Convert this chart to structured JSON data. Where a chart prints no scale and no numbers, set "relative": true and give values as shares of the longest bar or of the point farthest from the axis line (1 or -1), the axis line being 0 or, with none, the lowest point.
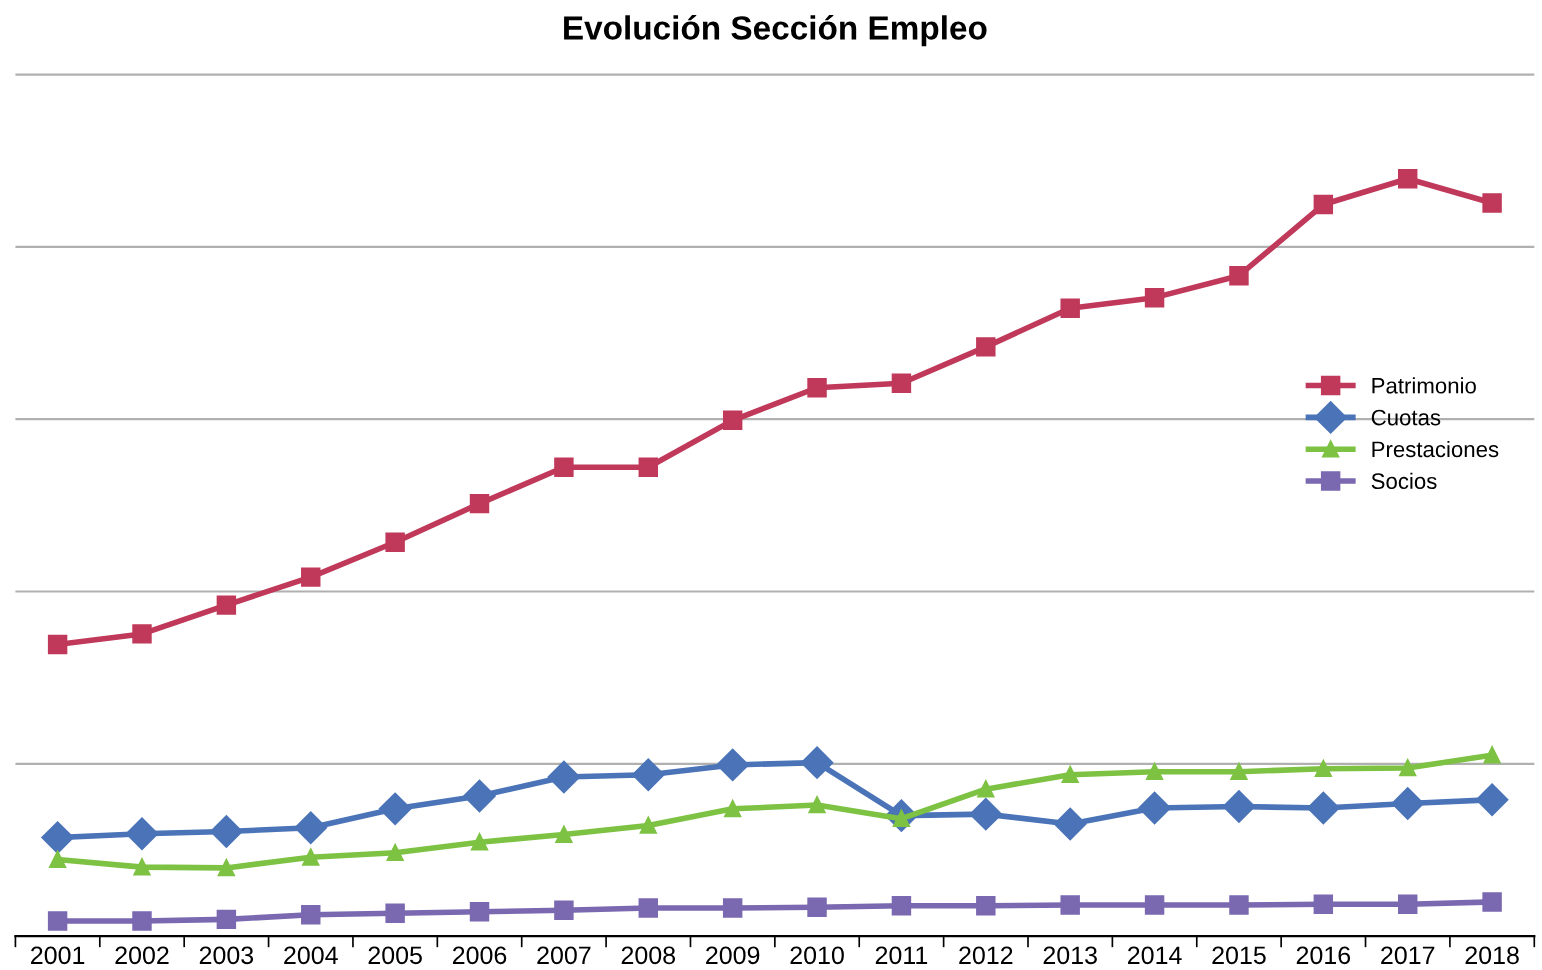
{
  "chart_data": {
    "type": "line",
    "title": "Evolución Sección Empleo",
    "relative": true,
    "grid": "y",
    "legend": "right",
    "line_style": "solid",
    "categories": [
      "2001",
      "2002",
      "2003",
      "2004",
      "2005",
      "2006",
      "2007",
      "2008",
      "2009",
      "2010",
      "2011",
      "2012",
      "2013",
      "2014",
      "2015",
      "2016",
      "2017",
      "2018"
    ],
    "series": [
      {
        "name": "Patrimonio",
        "color": "#c0395a",
        "marker": "square",
        "values": [
          0.385,
          0.399,
          0.437,
          0.474,
          0.52,
          0.571,
          0.619,
          0.619,
          0.681,
          0.724,
          0.73,
          0.778,
          0.829,
          0.843,
          0.872,
          0.966,
          1,
          0.968
        ]
      },
      {
        "name": "Cuotas",
        "color": "#4a73b8",
        "marker": "diamond",
        "values": [
          0.13,
          0.135,
          0.138,
          0.143,
          0.168,
          0.185,
          0.21,
          0.213,
          0.226,
          0.229,
          0.159,
          0.161,
          0.148,
          0.169,
          0.171,
          0.169,
          0.175,
          0.18
        ]
      },
      {
        "name": "Prestaciones",
        "color": "#7dc242",
        "marker": "triangle",
        "values": [
          0.101,
          0.091,
          0.09,
          0.104,
          0.11,
          0.124,
          0.134,
          0.146,
          0.168,
          0.173,
          0.155,
          0.194,
          0.213,
          0.217,
          0.217,
          0.221,
          0.222,
          0.239
        ]
      },
      {
        "name": "Socios",
        "color": "#7a68b0",
        "marker": "square",
        "values": [
          0.02,
          0.02,
          0.022,
          0.028,
          0.03,
          0.032,
          0.034,
          0.037,
          0.037,
          0.038,
          0.04,
          0.04,
          0.041,
          0.041,
          0.041,
          0.042,
          0.042,
          0.045
        ]
      }
    ]
  }
}
